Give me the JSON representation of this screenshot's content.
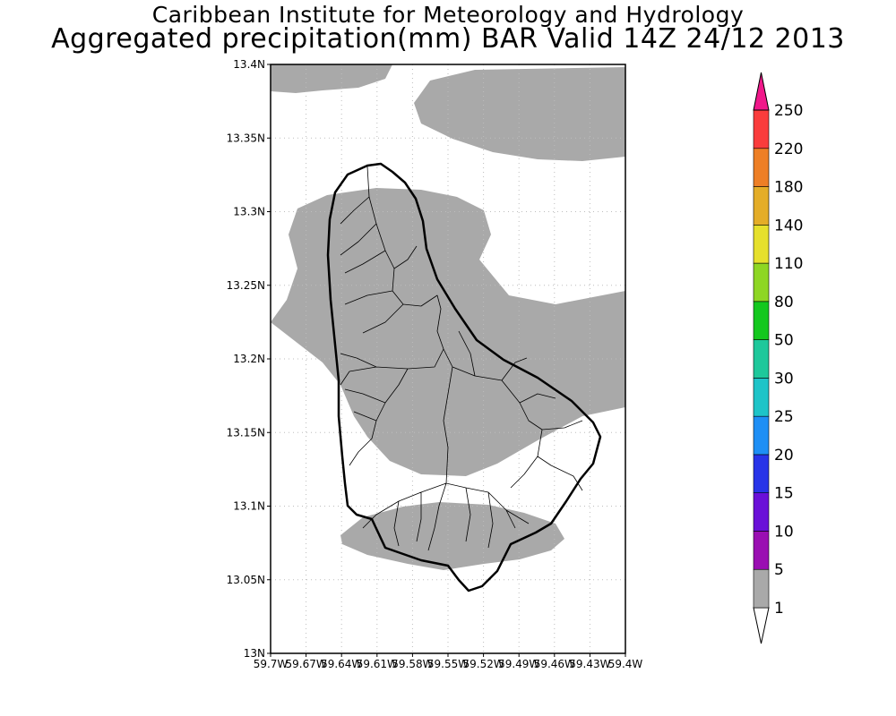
{
  "title": "Caribbean Institute for Meteorology and Hydrology",
  "subtitle": "Aggregated precipitation(mm) BAR Valid 14Z 24/12 2013",
  "map": {
    "lat_ticks": [
      "13N",
      "13.05N",
      "13.1N",
      "13.15N",
      "13.2N",
      "13.25N",
      "13.3N",
      "13.35N",
      "13.4N"
    ],
    "lon_ticks": [
      "59.7W",
      "59.67W",
      "59.64W",
      "59.61W",
      "59.58W",
      "59.55W",
      "59.52W",
      "59.49W",
      "59.46W",
      "59.43W",
      "59.4W"
    ],
    "lat_range": [
      13.0,
      13.4
    ],
    "lon_range": [
      -59.7,
      -59.4
    ],
    "grid": true,
    "shaded_class": "1-5 mm"
  },
  "colorbar": {
    "labels": [
      "1",
      "5",
      "10",
      "15",
      "20",
      "25",
      "30",
      "50",
      "80",
      "110",
      "140",
      "180",
      "220",
      "250"
    ],
    "colors": [
      "#ffffff",
      "#a9a9a9",
      "#9a0fb2",
      "#6a10d8",
      "#2834e8",
      "#1e8ff5",
      "#1ec4c8",
      "#1ec89b",
      "#14c81e",
      "#8ed623",
      "#e6e02c",
      "#e4ad28",
      "#ee7f26",
      "#fa3c3c",
      "#f0188a"
    ]
  }
}
